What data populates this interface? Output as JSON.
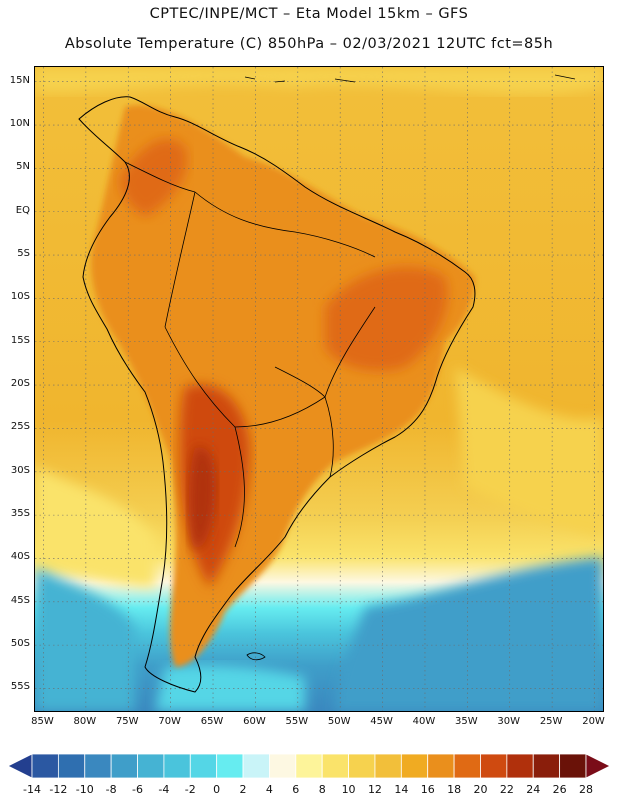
{
  "header": {
    "line1": "CPTEC/INPE/MCT –  Eta Model 15km – GFS",
    "line2": "Absolute Temperature (C) 850hPa – 02/03/2021 12UTC fct=85h"
  },
  "map": {
    "lon_range": [
      -86,
      -19
    ],
    "lat_range": [
      16.7,
      -57.6
    ],
    "lat_labels": [
      "15N",
      "10N",
      "5N",
      "EQ",
      "5S",
      "10S",
      "15S",
      "20S",
      "25S",
      "30S",
      "35S",
      "40S",
      "45S",
      "50S",
      "55S"
    ],
    "lat_values": [
      15,
      10,
      5,
      0,
      -5,
      -10,
      -15,
      -20,
      -25,
      -30,
      -35,
      -40,
      -45,
      -50,
      -55
    ],
    "lon_labels": [
      "85W",
      "80W",
      "75W",
      "70W",
      "65W",
      "60W",
      "55W",
      "50W",
      "45W",
      "40W",
      "35W",
      "30W",
      "25W",
      "20W"
    ],
    "lon_values": [
      -85,
      -80,
      -75,
      -70,
      -65,
      -60,
      -55,
      -50,
      -45,
      -40,
      -35,
      -30,
      -25,
      -20
    ],
    "gridlines": "dotted"
  },
  "colorbar": {
    "levels": [
      "-14",
      "-12",
      "-10",
      "-8",
      "-6",
      "-4",
      "-2",
      "0",
      "2",
      "4",
      "6",
      "8",
      "10",
      "12",
      "14",
      "16",
      "18",
      "20",
      "22",
      "24",
      "26",
      "28"
    ],
    "colors": [
      "#233f8f",
      "#2b58a2",
      "#2f6fb0",
      "#3a88bf",
      "#3f9ec9",
      "#45b3d3",
      "#4ac4dc",
      "#54d6e6",
      "#66ecf0",
      "#c9f4f8",
      "#fdf8e2",
      "#fdf49a",
      "#fae36a",
      "#f6d24e",
      "#f2bf3a",
      "#f0ab22",
      "#ea8f1c",
      "#e06a14",
      "#cf4a10",
      "#b0300c",
      "#8a1e0b",
      "#6a1208",
      "#7a0c18"
    ]
  }
}
